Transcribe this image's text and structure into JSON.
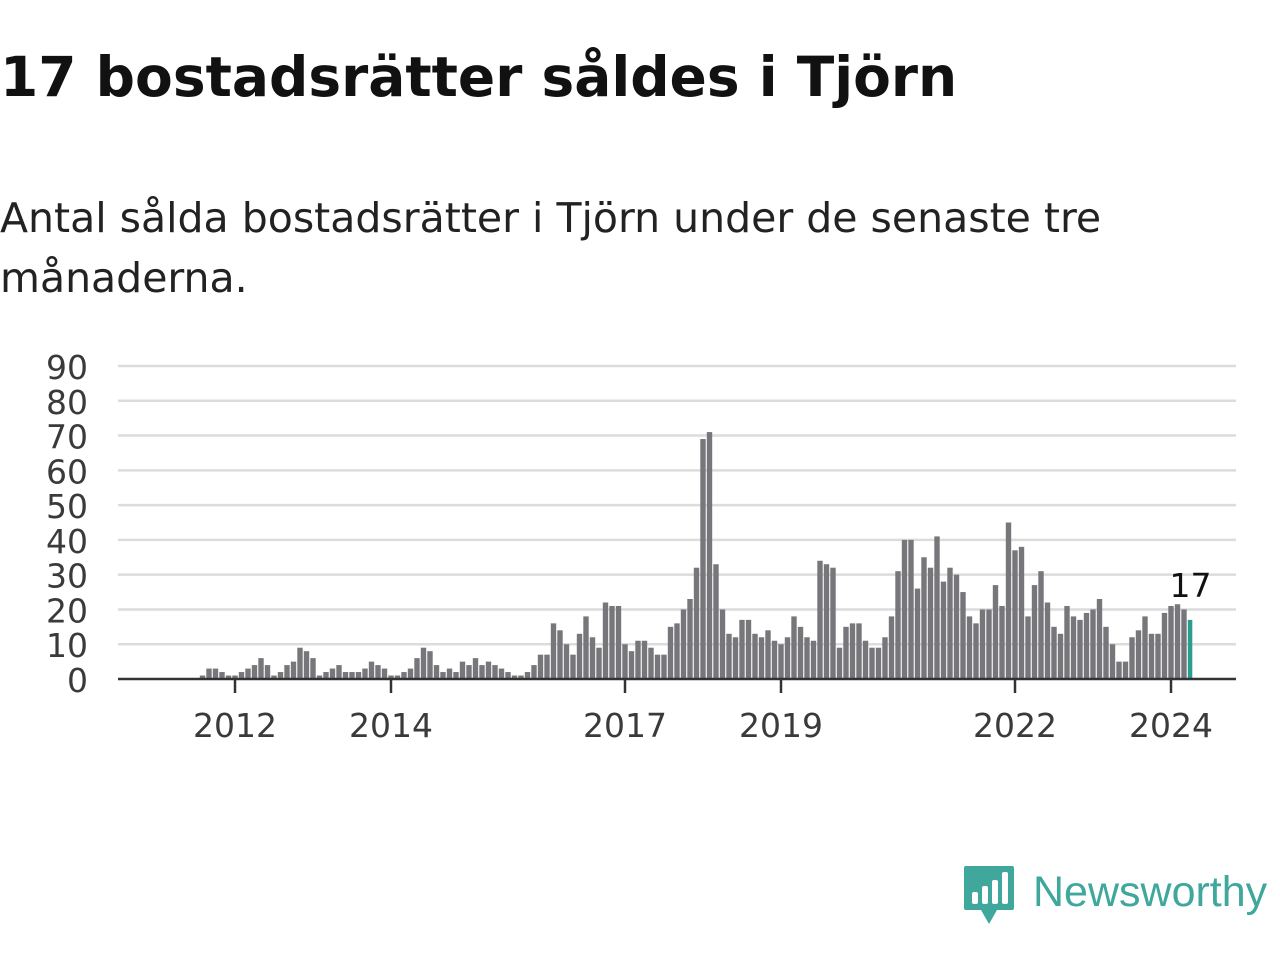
{
  "header": {
    "title": "17 bostadsrätter såldes i Tjörn",
    "subtitle": "Antal sålda bostadsrätter i Tjörn under de senaste tre månaderna."
  },
  "brand": {
    "name": "Newsworthy",
    "icon": "newsworthy-logo-icon",
    "color": "#3fa79c"
  },
  "chart_data": {
    "type": "bar",
    "frequency": "monthly, rolling three-month total",
    "x_start": "2011-01",
    "values": [
      0,
      0,
      0,
      0,
      0,
      0,
      0,
      0,
      0,
      0,
      0,
      0,
      1,
      3,
      3,
      2,
      1,
      1,
      2,
      3,
      4,
      6,
      4,
      1,
      2,
      4,
      5,
      9,
      8,
      6,
      1,
      2,
      3,
      4,
      2,
      2,
      2,
      3,
      5,
      4,
      3,
      1,
      1,
      2,
      3,
      6,
      9,
      8,
      4,
      2,
      3,
      2,
      5,
      4,
      6,
      4,
      5,
      4,
      3,
      2,
      1,
      1,
      2,
      4,
      7,
      7,
      16,
      14,
      10,
      7,
      13,
      18,
      12,
      9,
      22,
      21,
      21,
      10,
      8,
      11,
      11,
      9,
      7,
      7,
      15,
      16,
      20,
      23,
      32,
      69,
      71,
      33,
      20,
      13,
      12,
      17,
      17,
      13,
      12,
      14,
      11,
      10,
      12,
      18,
      15,
      12,
      11,
      34,
      33,
      32,
      9,
      15,
      16,
      16,
      11,
      9,
      9,
      12,
      18,
      31,
      40,
      40,
      26,
      35,
      32,
      41,
      28,
      32,
      30,
      25,
      18,
      16,
      20,
      20,
      27,
      21,
      45,
      37,
      38,
      18,
      27,
      31,
      22,
      15,
      13,
      21,
      18,
      17,
      19,
      20,
      23,
      15,
      10,
      5,
      5,
      12,
      14,
      18,
      13,
      13,
      19,
      21,
      21.5,
      20,
      17
    ],
    "highlight": {
      "label": "17",
      "color": "#2a9d8f"
    },
    "bar_color": "#77767b",
    "yticks": [
      0,
      10,
      20,
      30,
      40,
      50,
      60,
      70,
      80,
      90
    ],
    "ylim": [
      0,
      90
    ],
    "xticks": [
      {
        "label": "2012",
        "date": "2012-06"
      },
      {
        "label": "2014",
        "date": "2014-06"
      },
      {
        "label": "2017",
        "date": "2017-06"
      },
      {
        "label": "2019",
        "date": "2019-06"
      },
      {
        "label": "2022",
        "date": "2022-06"
      },
      {
        "label": "2024",
        "date": "2024-06"
      }
    ],
    "grid": true,
    "title": "",
    "xlabel": "",
    "ylabel": ""
  }
}
